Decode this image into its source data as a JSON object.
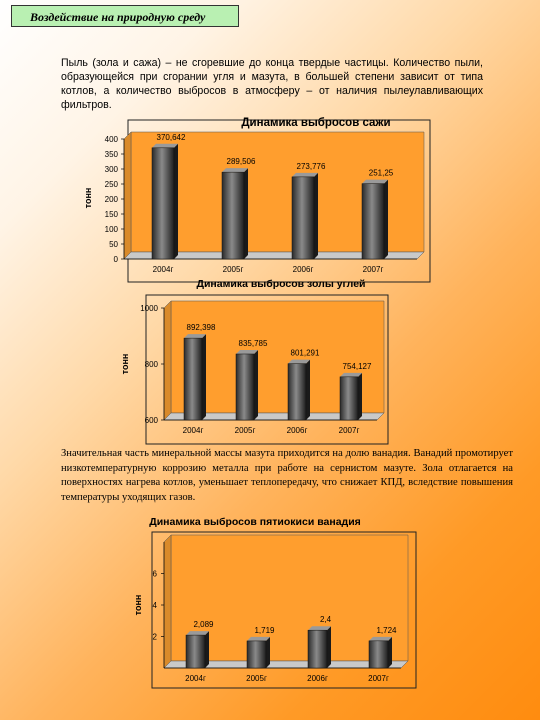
{
  "header": {
    "title": "Воздействие на природную среду"
  },
  "paragraph1": "Пыль (зола и сажа) – не сгоревшие до конца твердые частицы. Количество пыли, образующейся при сгорании угля и мазута, в большей степени зависит от типа котлов, а количество выбросов в атмосферу – от наличия пылеулавливающих фильтров.",
  "paragraph2": "Значительная часть минеральной массы мазута приходится на долю ванадия. Ванадий промотирует низкотемпературную коррозию металла при работе на сернистом мазуте. Зола отлагается на поверхностях нагрева котлов, уменьшает теплопередачу, что снижает КПД, вследствие повышения температуры уходящих газов.",
  "chart_data": [
    {
      "type": "bar",
      "title": "Динамика выбросов сажи",
      "ylabel": "тонн",
      "categories": [
        "2004г",
        "2005г",
        "2006г",
        "2007г"
      ],
      "values": [
        370.642,
        289.506,
        273.776,
        251.25
      ],
      "value_labels": [
        "370,642",
        "289,506",
        "273,776",
        "251,25"
      ],
      "ylim": [
        0,
        400
      ],
      "yticks": [
        0,
        50,
        100,
        150,
        200,
        250,
        300,
        350,
        400
      ],
      "ytick_labels": [
        "0",
        "50",
        "100",
        "150",
        "200",
        "250",
        "300",
        "350",
        "400"
      ],
      "bar_color": "#555555",
      "plot_bg": "#ff9e2e"
    },
    {
      "type": "bar",
      "title": "Динамика выбросов золы углей",
      "ylabel": "тонн",
      "categories": [
        "2004г",
        "2005г",
        "2006г",
        "2007г"
      ],
      "values": [
        892.398,
        835.785,
        801.291,
        754.127
      ],
      "value_labels": [
        "892,398",
        "835,785",
        "801,291",
        "754,127"
      ],
      "ylim": [
        600,
        1000
      ],
      "yticks": [
        600,
        800,
        1000
      ],
      "ytick_labels": [
        "600",
        "800",
        "1000"
      ],
      "bar_color": "#555555",
      "plot_bg": "#ff9e2e"
    },
    {
      "type": "bar",
      "title": "Динамика выбросов пятиокиси ванадия",
      "ylabel": "тонн",
      "categories": [
        "2004г",
        "2005г",
        "2006г",
        "2007г"
      ],
      "values": [
        2.089,
        1.719,
        2.4,
        1.724
      ],
      "value_labels": [
        "2,089",
        "1,719",
        "2,4",
        "1,724"
      ],
      "ylim": [
        0,
        8
      ],
      "yticks": [
        2,
        4,
        6
      ],
      "ytick_labels": [
        "2",
        "4",
        "6"
      ],
      "bar_color": "#555555",
      "plot_bg": "#ff9e2e"
    }
  ]
}
